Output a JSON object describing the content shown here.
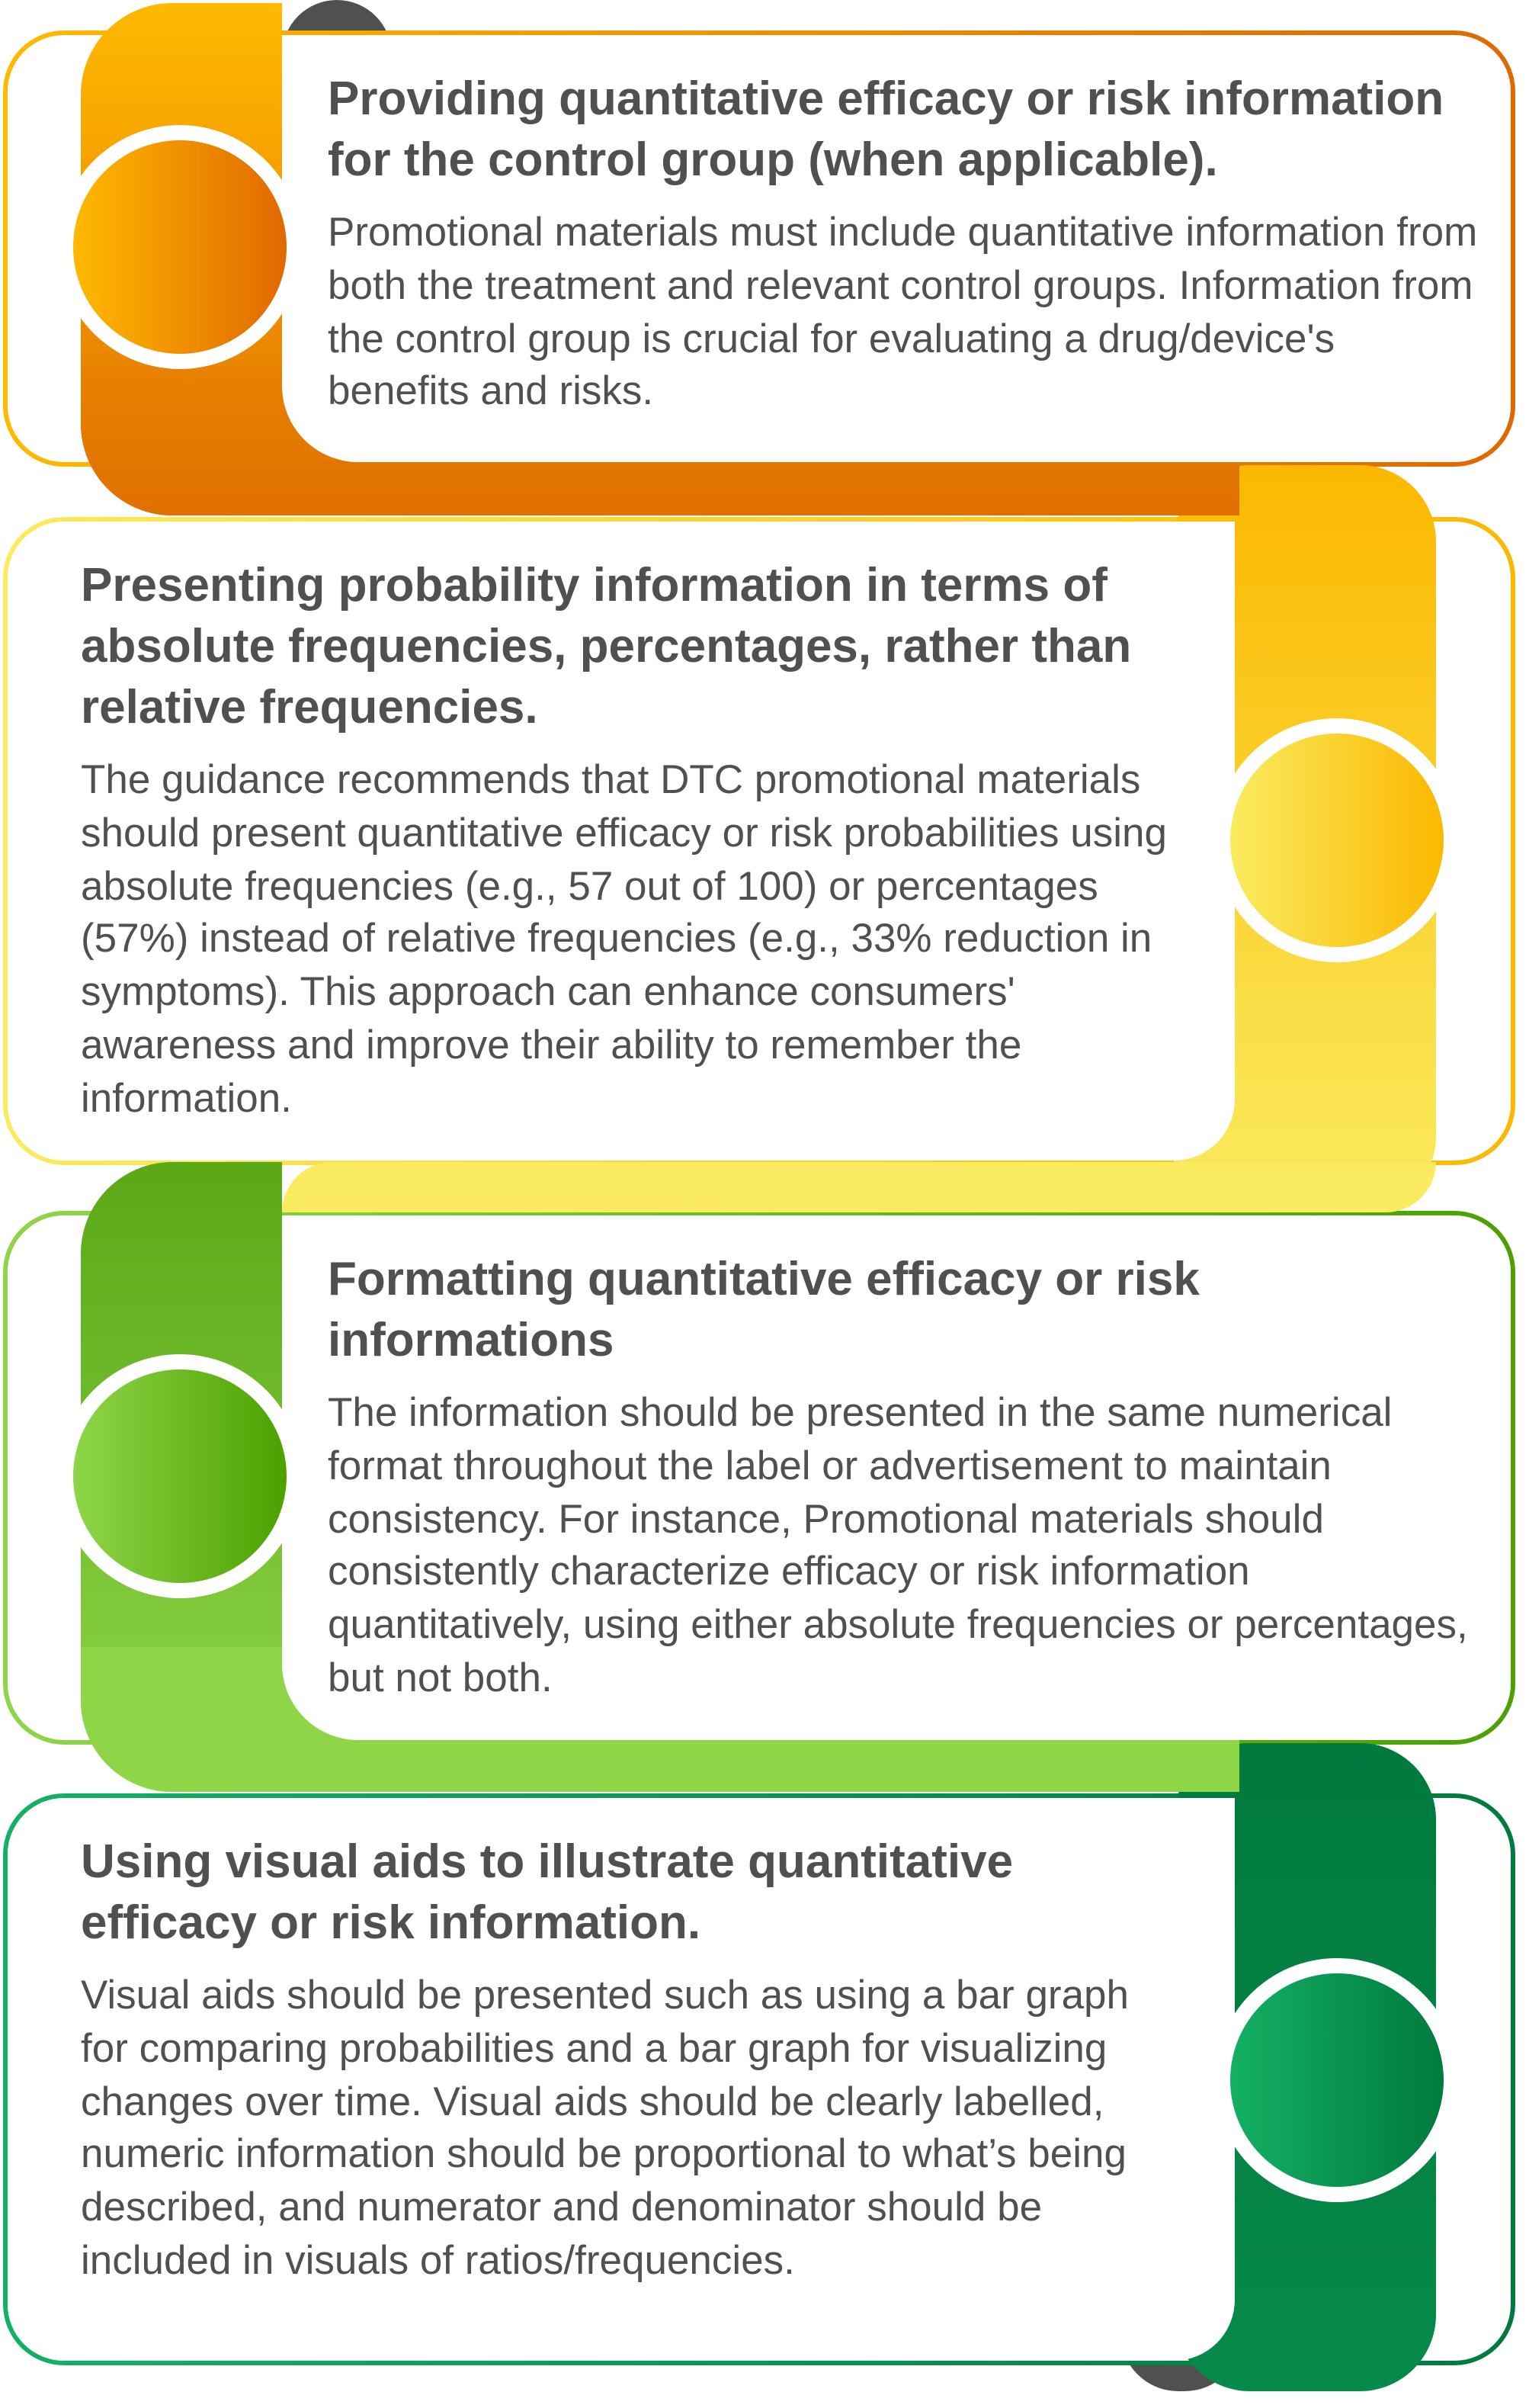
{
  "colors": {
    "text": "#505050",
    "step1": [
      "#FFB900",
      "#E06800"
    ],
    "step2": [
      "#FBB800",
      "#FAEB60"
    ],
    "step3": [
      "#4CA000",
      "#8ED648"
    ],
    "step4": [
      "#14B064",
      "#007A3D"
    ],
    "tab": "#505050"
  },
  "steps": [
    {
      "title": "Providing quantitative efficacy or risk information for the control group (when applicable).",
      "body": "Promotional materials must include quantitative information from both the treatment and relevant control groups. Information from the control group is crucial for evaluating a drug/device's benefits and risks."
    },
    {
      "title": "Presenting probability information in terms of absolute frequencies, percentages, rather than relative frequencies.",
      "body": "The guidance recommends that DTC promotional materials should present quantitative efficacy or risk probabilities using absolute frequencies (e.g., 57 out of 100) or percentages (57%) instead of relative frequencies (e.g., 33% reduction in symptoms). This approach can enhance consumers' awareness and improve their ability to remember the information."
    },
    {
      "title": "Formatting quantitative efficacy or risk informations",
      "body": "The information should be presented in the same numerical format throughout the label or advertisement to maintain consistency. For instance, Promotional materials should consistently characterize efficacy or risk information quantitatively, using either absolute frequencies or percentages, but not both."
    },
    {
      "title": "Using visual aids to illustrate quantitative efficacy or risk information.",
      "body": "Visual aids should be presented such as using a bar graph for comparing probabilities and a bar graph for visualizing changes over time. Visual aids should be clearly labelled, numeric information should be proportional to what’s being described, and numerator and denominator should be included in visuals of ratios/frequencies."
    }
  ]
}
